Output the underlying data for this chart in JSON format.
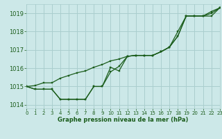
{
  "title": "Graphe pression niveau de la mer (hPa)",
  "bg_color": "#cce8e8",
  "grid_color": "#aacece",
  "line_color": "#1a5c1a",
  "xlim": [
    0,
    23
  ],
  "ylim": [
    1013.8,
    1019.5
  ],
  "yticks": [
    1014,
    1015,
    1016,
    1017,
    1018,
    1019
  ],
  "xticks": [
    0,
    1,
    2,
    3,
    4,
    5,
    6,
    7,
    8,
    9,
    10,
    11,
    12,
    13,
    14,
    15,
    16,
    17,
    18,
    19,
    20,
    21,
    22,
    23
  ],
  "series1": [
    1015.0,
    1014.85,
    1014.85,
    1014.85,
    1014.3,
    1014.3,
    1014.3,
    1014.3,
    1015.0,
    1015.0,
    1015.8,
    1016.1,
    1016.65,
    1016.7,
    1016.7,
    1016.7,
    1016.9,
    1017.15,
    1017.75,
    1018.85,
    1018.85,
    1018.85,
    1019.0,
    1019.3
  ],
  "series2": [
    1015.0,
    1014.85,
    1014.85,
    1014.85,
    1014.3,
    1014.3,
    1014.3,
    1014.3,
    1015.0,
    1015.0,
    1016.05,
    1015.85,
    1016.65,
    1016.7,
    1016.7,
    1016.7,
    1016.9,
    1017.15,
    1017.75,
    1018.85,
    1018.85,
    1018.85,
    1018.85,
    1019.3
  ],
  "series3": [
    1015.0,
    1015.05,
    1015.2,
    1015.2,
    1015.45,
    1015.6,
    1015.75,
    1015.85,
    1016.05,
    1016.2,
    1016.4,
    1016.5,
    1016.65,
    1016.7,
    1016.7,
    1016.7,
    1016.9,
    1017.15,
    1018.0,
    1018.85,
    1018.85,
    1018.85,
    1019.1,
    1019.3
  ]
}
